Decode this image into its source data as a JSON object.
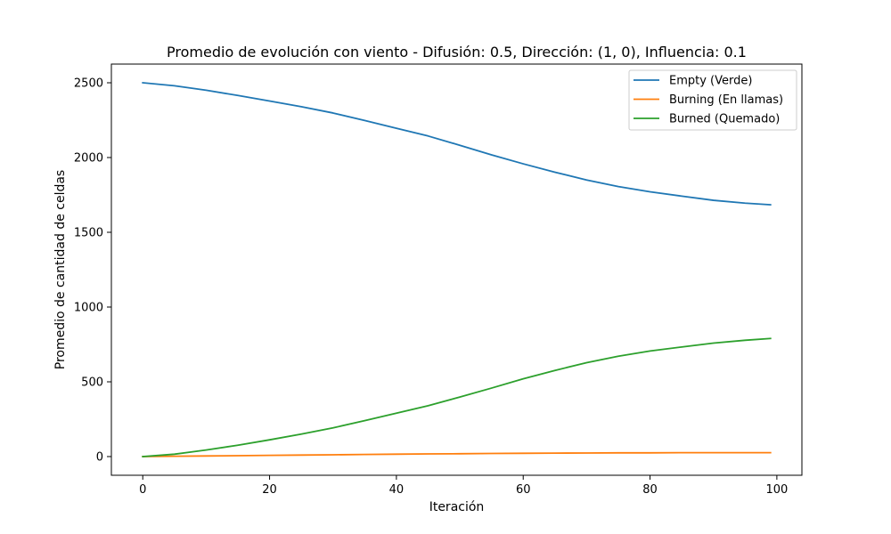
{
  "chart_data": {
    "type": "line",
    "title": "Promedio de evolución con viento - Difusión: 0.5, Dirección: (1, 0), Influencia: 0.1",
    "xlabel": "Iteración",
    "ylabel": "Promedio de cantidad de celdas",
    "xlim": [
      -4.95,
      103.95
    ],
    "ylim": [
      -125,
      2625
    ],
    "xticks": [
      0,
      20,
      40,
      60,
      80,
      100
    ],
    "yticks": [
      0,
      500,
      1000,
      1500,
      2000,
      2500
    ],
    "grid": false,
    "legend_position": "top-right",
    "x": [
      0,
      5,
      10,
      15,
      20,
      25,
      30,
      35,
      40,
      45,
      50,
      55,
      60,
      65,
      70,
      75,
      80,
      85,
      90,
      95,
      99
    ],
    "series": [
      {
        "name": "Empty (Verde)",
        "color": "#1f77b4",
        "values": [
          2500,
          2480,
          2450,
          2415,
          2378,
          2340,
          2298,
          2248,
          2196,
          2144,
          2082,
          2018,
          1958,
          1902,
          1850,
          1806,
          1771,
          1742,
          1714,
          1695,
          1684
        ]
      },
      {
        "name": "Burning (En llamas)",
        "color": "#ff7f0e",
        "values": [
          0,
          2,
          4,
          6,
          8,
          10,
          12,
          14,
          16,
          18,
          19,
          21,
          22,
          23,
          24,
          25,
          25,
          26,
          26,
          26,
          26
        ]
      },
      {
        "name": "Burned (Quemado)",
        "color": "#2ca02c",
        "values": [
          0,
          16,
          44,
          76,
          112,
          150,
          192,
          240,
          290,
          340,
          398,
          458,
          520,
          576,
          628,
          671,
          706,
          733,
          759,
          778,
          790
        ]
      }
    ]
  }
}
